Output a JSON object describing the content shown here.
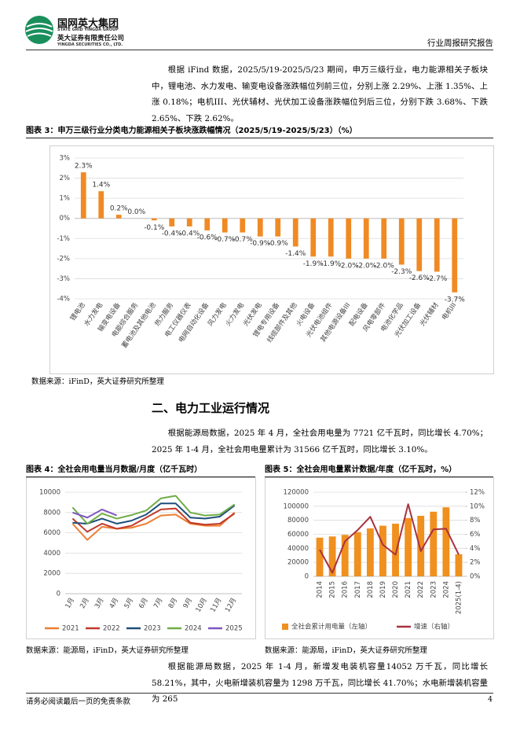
{
  "header": {
    "logo_title": "国网英大集团",
    "logo_title_en": "STATE GRID YINGDA GROUP",
    "company": "英大证券有限责任公司",
    "company_en": "YINGDA SECURITIES CO., LTD.",
    "report_type": "行业周报研究报告"
  },
  "paragraphs": [
    "根据 iFind 数据，2025/5/19-2025/5/23 期间，申万三级行业，电力能源相关子板块中，锂电池、水力发电、输变电设备涨跌幅位列前三位，分别上涨 2.29%、上涨 1.35%、上涨 0.18%；电机III、光伏辅材、光伏加工设备涨跌幅位列后三位，分别下跌 3.68%、下跌 2.65%、下跌 2.62%。",
    "根据能源局数据，2025 年 4 月，全社会用电量为 7721 亿千瓦时，同比增长 4.70%；2025 年 1-4 月，全社会用电量累计为 31566 亿千瓦时，同比增长 3.10%。",
    "根据能源局数据，2025 年 1-4 月，新增发电装机容量14052 万千瓦，同比增长 58.21%，其中，火电新增装机容量为 1298 万千瓦，同比增长 41.70%；水电新增装机容量为 265"
  ],
  "section_heading": "二、电力工业运行情况",
  "chart_data": [
    {
      "type": "bar",
      "title": "图表 3：申万三级行业分类电力能源相关子板块涨跌幅情况（2025/5/19-2025/5/23）（%）",
      "source": "数据来源：iFinD，英大证券研究所整理",
      "categories": [
        "锂电池",
        "水力发电",
        "输变电设备",
        "电能综合服务",
        "蓄电池及其他电池",
        "热力服务",
        "电工仪器仪表",
        "电网自动化设备",
        "风力发电",
        "火力发电",
        "光伏发电",
        "锂电专用设备",
        "线缆部件及其他",
        "火电设备",
        "光伏电池组件",
        "其他电源设备III",
        "配电设备",
        "风电零部件",
        "电池化学品",
        "光伏加工设备",
        "光伏辅材",
        "电机III"
      ],
      "values": [
        2.29,
        1.35,
        0.18,
        0.0,
        -0.1,
        -0.4,
        -0.4,
        -0.6,
        -0.7,
        -0.7,
        -0.9,
        -0.9,
        -1.4,
        -1.9,
        -1.9,
        -2.0,
        -2.0,
        -2.0,
        -2.3,
        -2.62,
        -2.65,
        -3.68
      ],
      "value_labels": [
        "2.3%",
        "1.4%",
        "0.2%",
        "0.0%",
        "-0.1%",
        "-0.4%",
        "-0.4%",
        "-0.6%",
        "-0.7%",
        "-0.7%",
        "-0.9%",
        "-0.9%",
        "-1.4%",
        "-1.9%",
        "-1.9%",
        "-2.0%",
        "-2.0%",
        "-2.0%",
        "-2.3%",
        "-2.6%",
        "-2.7%",
        "-3.7%"
      ],
      "color": "#f08a24",
      "ylim": [
        -4,
        3
      ],
      "yticks": [
        {
          "value": 3,
          "label": "3%"
        },
        {
          "value": 2,
          "label": "2%"
        },
        {
          "value": 1,
          "label": "1%"
        },
        {
          "value": 0,
          "label": "0%"
        },
        {
          "value": -1,
          "label": "-1%"
        },
        {
          "value": -2,
          "label": "-2%"
        },
        {
          "value": -3,
          "label": "-3%"
        },
        {
          "value": -4,
          "label": "-4%"
        }
      ],
      "grid": true
    },
    {
      "type": "line",
      "title": "图表 4：全社会用电量当月数据/月度（亿千瓦时）",
      "source": "数据来源：能源局，iFinD，英大证券研究所整理",
      "categories": [
        "1月",
        "2月",
        "3月",
        "4月",
        "5月",
        "6月",
        "7月",
        "8月",
        "9月",
        "10月",
        "11月",
        "12月"
      ],
      "series": [
        {
          "name": "2021",
          "color": "#ed7d31",
          "values": [
            6900,
            5300,
            6600,
            6400,
            6500,
            6900,
            7700,
            7800,
            6900,
            6700,
            6700,
            8000
          ]
        },
        {
          "name": "2022",
          "color": "#c0392b",
          "values": [
            7400,
            6100,
            6900,
            6400,
            6700,
            7500,
            8300,
            8400,
            7000,
            6800,
            6900,
            7900
          ]
        },
        {
          "name": "2023",
          "color": "#1f4e79",
          "values": [
            7000,
            6900,
            7400,
            6900,
            7200,
            7800,
            8900,
            8900,
            7500,
            7400,
            7600,
            8700
          ]
        },
        {
          "name": "2024",
          "color": "#70ad47",
          "values": [
            8500,
            6900,
            7900,
            7400,
            7750,
            8200,
            9400,
            9650,
            8000,
            7700,
            7800,
            8800
          ]
        },
        {
          "name": "2025",
          "color": "#7e57c2",
          "values": [
            8000,
            7500,
            8300,
            7721,
            null,
            null,
            null,
            null,
            null,
            null,
            null,
            null
          ]
        }
      ],
      "ylim": [
        0,
        10000
      ],
      "yticks": [
        0,
        2000,
        4000,
        6000,
        8000,
        10000
      ],
      "grid": true,
      "legend": "bottom"
    },
    {
      "type": "bar",
      "title": "图表 5：全社会用电量累计数据/年度（亿千瓦时，%）",
      "source": "数据来源：能源局，iFinD，英大证券研究所整理",
      "categories": [
        "2014",
        "2015",
        "2016",
        "2017",
        "2018",
        "2019",
        "2020",
        "2021",
        "2022",
        "2023",
        "2024",
        "2025(1-4)"
      ],
      "series": [
        {
          "name": "全社会累计用电量（左轴）",
          "type": "bar",
          "color": "#f0901e",
          "values": [
            55233,
            56933,
            59198,
            63077,
            68449,
            72255,
            75110,
            83128,
            86372,
            92241,
            98521,
            31566
          ]
        },
        {
          "name": "增速（右轴）",
          "type": "line",
          "axis": "y2",
          "color": "#a8323e",
          "values": [
            3.8,
            0.5,
            5.0,
            6.6,
            8.5,
            4.5,
            3.1,
            10.3,
            3.6,
            6.7,
            6.8,
            3.1
          ]
        }
      ],
      "ylim": [
        0,
        120000
      ],
      "yticks": [
        0,
        20000,
        40000,
        60000,
        80000,
        100000,
        120000
      ],
      "y2lim": [
        0,
        12
      ],
      "y2ticks": [
        {
          "value": 0,
          "label": "0%"
        },
        {
          "value": 2,
          "label": "2%"
        },
        {
          "value": 4,
          "label": "4%"
        },
        {
          "value": 6,
          "label": "6%"
        },
        {
          "value": 8,
          "label": "8%"
        },
        {
          "value": 10,
          "label": "10%"
        },
        {
          "value": 12,
          "label": "12%"
        }
      ],
      "grid": true,
      "legend": "bottom"
    }
  ],
  "footer": {
    "disclaimer": "请务必阅读最后一页的免责条款",
    "page": "4"
  }
}
